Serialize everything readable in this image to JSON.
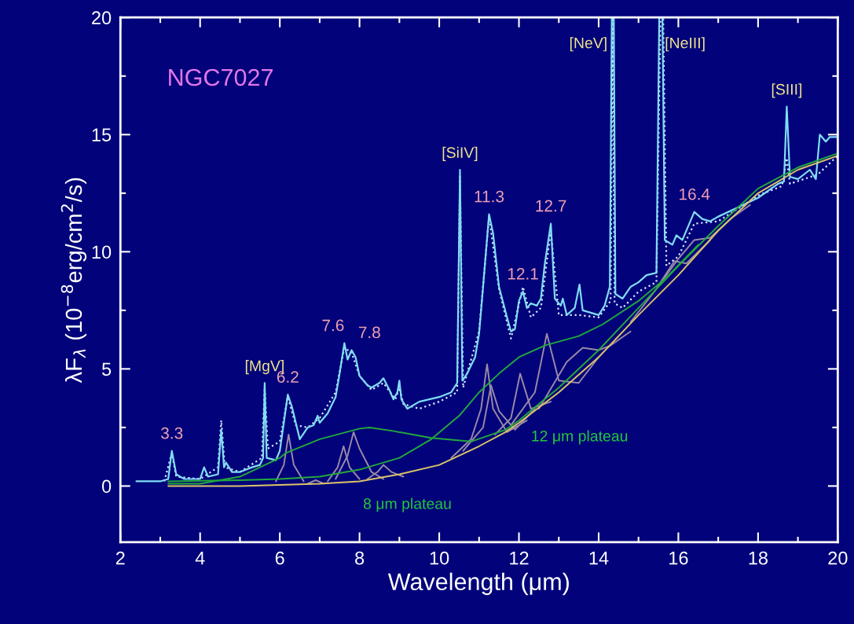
{
  "chart_data": {
    "type": "line",
    "title": "NGC7027",
    "xlabel": "Wavelength (μm)",
    "ylabel": "λF$_{λ}$ (10$^{−8}$erg/cm$^{2}$/s)",
    "xlim": [
      2,
      20
    ],
    "xticks": [
      2,
      4,
      6,
      8,
      10,
      12,
      14,
      16,
      18,
      20
    ],
    "ylim": [
      -2.4,
      20
    ],
    "yticks": [
      0,
      5,
      10,
      15,
      20
    ],
    "grid": false,
    "legend": false,
    "marker": "none",
    "series": [
      {
        "color": "#d8e8ff",
        "line_style": "dotted",
        "x": [
          3.1,
          3.29,
          3.4,
          4.0,
          4.45,
          4.53,
          4.62,
          5.0,
          5.55,
          5.62,
          5.7,
          6.0,
          6.2,
          6.4,
          6.7,
          7.0,
          7.4,
          7.62,
          7.8,
          8.0,
          8.3,
          8.6,
          8.9,
          9.0,
          9.1,
          9.5,
          10.0,
          10.45,
          10.52,
          10.6,
          11.0,
          11.25,
          11.5,
          11.8,
          12.1,
          12.3,
          12.55,
          12.8,
          13.0,
          13.5,
          14.0,
          14.3,
          14.35,
          14.4,
          14.6,
          15.0,
          15.45,
          15.55,
          15.62,
          15.7,
          16.0,
          16.4,
          17.0,
          18.0,
          18.6,
          18.72,
          18.8,
          19.5,
          20.0
        ],
        "values": [
          0.2,
          1.4,
          0.4,
          0.3,
          0.8,
          2.8,
          0.8,
          0.6,
          1.2,
          4.2,
          1.6,
          1.9,
          3.8,
          2.6,
          2.5,
          2.9,
          4.0,
          5.9,
          5.7,
          4.7,
          4.1,
          4.4,
          3.7,
          4.2,
          3.5,
          3.3,
          3.6,
          4.0,
          13.2,
          4.2,
          6.6,
          11.5,
          8.4,
          6.3,
          8.5,
          7.2,
          7.6,
          10.9,
          7.3,
          7.3,
          7.2,
          7.9,
          20,
          7.8,
          7.6,
          8.3,
          8.7,
          20,
          20,
          9.4,
          9.8,
          11.2,
          11.3,
          12.4,
          12.8,
          14.0,
          12.9,
          13.3,
          14.1
        ]
      },
      {
        "color": "#80dcf4",
        "line_style": "solid",
        "x": [
          2.4,
          3.0,
          3.2,
          3.29,
          3.4,
          3.6,
          4.0,
          4.1,
          4.2,
          4.45,
          4.53,
          4.6,
          4.65,
          4.8,
          5.0,
          5.3,
          5.5,
          5.58,
          5.62,
          5.67,
          5.9,
          6.0,
          6.2,
          6.3,
          6.5,
          6.7,
          6.85,
          6.95,
          7.0,
          7.2,
          7.4,
          7.5,
          7.62,
          7.7,
          7.8,
          7.9,
          8.0,
          8.2,
          8.3,
          8.5,
          8.6,
          8.75,
          8.85,
          8.95,
          9.0,
          9.05,
          9.2,
          9.5,
          10.0,
          10.3,
          10.45,
          10.52,
          10.58,
          10.7,
          10.9,
          11.0,
          11.1,
          11.25,
          11.35,
          11.5,
          11.7,
          11.8,
          11.9,
          12.0,
          12.1,
          12.2,
          12.3,
          12.45,
          12.55,
          12.65,
          12.8,
          12.9,
          13.05,
          13.1,
          13.2,
          13.4,
          13.52,
          13.6,
          13.8,
          14.0,
          14.15,
          14.28,
          14.33,
          14.38,
          14.42,
          14.6,
          14.8,
          15.0,
          15.2,
          15.45,
          15.52,
          15.6,
          15.66,
          15.85,
          15.95,
          16.1,
          16.4,
          16.6,
          16.8,
          17.0,
          17.5,
          18.0,
          18.5,
          18.65,
          18.72,
          18.8,
          19.0,
          19.3,
          19.45,
          19.55,
          19.7,
          19.8,
          20.0
        ],
        "values": [
          0.2,
          0.2,
          0.3,
          1.5,
          0.5,
          0.3,
          0.3,
          0.8,
          0.4,
          0.5,
          2.4,
          0.8,
          1.0,
          0.6,
          0.6,
          0.8,
          0.9,
          1.2,
          4.4,
          1.2,
          1.1,
          1.5,
          3.9,
          3.4,
          2.0,
          2.5,
          2.6,
          3.0,
          2.7,
          3.1,
          3.8,
          4.8,
          6.1,
          5.4,
          5.8,
          5.5,
          4.7,
          4.3,
          4.2,
          4.4,
          4.6,
          4.1,
          3.7,
          4.0,
          4.5,
          3.7,
          3.3,
          3.6,
          3.8,
          4.0,
          4.4,
          13.5,
          4.5,
          4.8,
          5.5,
          6.5,
          8.5,
          11.6,
          10.8,
          8.5,
          7.2,
          6.6,
          6.7,
          7.9,
          8.3,
          7.6,
          7.8,
          7.7,
          8.0,
          9.5,
          11.2,
          8.0,
          7.7,
          8.0,
          7.3,
          7.6,
          8.6,
          7.5,
          7.4,
          7.3,
          7.7,
          8.5,
          20,
          20,
          8.2,
          8.0,
          8.5,
          8.7,
          9.0,
          9.1,
          20,
          20,
          10.5,
          10.3,
          10.7,
          10.5,
          11.7,
          11.4,
          11.3,
          11.5,
          11.9,
          12.3,
          12.9,
          13.0,
          16.2,
          13.2,
          13.1,
          13.5,
          13.1,
          15.0,
          14.7,
          14.9,
          14.9
        ]
      },
      {
        "color": "#9a8aa8",
        "x": [
          5.9,
          6.1,
          6.22,
          6.35,
          6.6
        ],
        "values": [
          0.2,
          0.9,
          2.2,
          0.9,
          0.2
        ]
      },
      {
        "color": "#9a8aa8",
        "x": [
          6.7,
          6.9,
          7.1
        ],
        "values": [
          0.1,
          0.25,
          0.1
        ]
      },
      {
        "color": "#9a8aa8",
        "x": [
          7.2,
          7.45,
          7.6,
          7.75,
          8.0
        ],
        "values": [
          0.2,
          0.8,
          1.7,
          0.8,
          0.3
        ]
      },
      {
        "color": "#9a8aa8",
        "x": [
          7.4,
          7.7,
          7.85,
          8.0,
          8.3,
          8.6
        ],
        "values": [
          0.3,
          1.3,
          2.3,
          1.6,
          0.6,
          0.3
        ]
      },
      {
        "color": "#9a8aa8",
        "x": [
          8.2,
          8.45,
          8.6,
          8.8,
          9.1
        ],
        "values": [
          0.3,
          0.6,
          0.9,
          0.6,
          0.4
        ]
      },
      {
        "color": "#9a8aa8",
        "x": [
          10.3,
          10.8,
          11.05,
          11.2,
          11.35,
          11.7,
          12.2
        ],
        "values": [
          1.2,
          2.0,
          3.3,
          5.2,
          3.3,
          2.3,
          2.8
        ]
      },
      {
        "color": "#9a8aa8",
        "x": [
          10.6,
          11.1,
          11.3,
          11.5,
          11.9,
          12.4
        ],
        "values": [
          1.5,
          2.5,
          4.3,
          3.2,
          2.4,
          3.3
        ]
      },
      {
        "color": "#9a8aa8",
        "x": [
          11.4,
          11.8,
          12.03,
          12.3,
          12.8
        ],
        "values": [
          2.2,
          2.9,
          4.8,
          3.3,
          3.6
        ]
      },
      {
        "color": "#9a8aa8",
        "x": [
          11.8,
          12.4,
          12.7,
          13.0,
          13.5,
          14.0
        ],
        "values": [
          2.6,
          4.0,
          6.5,
          4.5,
          4.4,
          5.5
        ]
      },
      {
        "color": "#9a8aa8",
        "x": [
          12.5,
          13.2,
          13.6,
          14.0,
          14.3,
          14.8
        ],
        "values": [
          3.3,
          5.3,
          5.9,
          5.8,
          6.0,
          6.6
        ]
      },
      {
        "color": "#9a8aa8",
        "x": [
          14.8,
          15.4,
          15.9,
          16.2,
          16.8
        ],
        "values": [
          7.0,
          8.3,
          9.6,
          9.5,
          10.5
        ]
      },
      {
        "color": "#9a8aa8",
        "x": [
          15.4,
          16.0,
          16.4,
          16.8,
          17.3,
          17.8
        ],
        "values": [
          8.3,
          9.7,
          10.5,
          10.6,
          11.4,
          12.0
        ]
      },
      {
        "color": "#22a83c",
        "x": [
          3.2,
          4.0,
          5.0,
          6.0,
          6.14,
          7.0,
          8.0,
          8.25,
          8.84,
          9.8,
          10.8,
          11.66,
          12.0,
          13.0,
          14.0,
          15.0,
          16.0,
          17.0,
          18.0,
          19.0,
          20.0
        ],
        "values": [
          0.1,
          0.1,
          0.4,
          1.2,
          1.4,
          2.0,
          2.45,
          2.5,
          2.35,
          2.05,
          1.9,
          2.4,
          2.8,
          4.2,
          5.8,
          7.6,
          9.4,
          11.1,
          12.7,
          13.6,
          14.2
        ]
      },
      {
        "color": "#22a83c",
        "x": [
          3.2,
          5.0,
          6.0,
          7.0,
          8.0,
          9.0,
          9.8,
          10.5,
          11.0,
          11.5,
          12.0,
          12.65,
          13.5,
          14.1,
          15.0,
          15.7,
          16.5
        ],
        "values": [
          0.2,
          0.25,
          0.3,
          0.4,
          0.7,
          1.2,
          2.0,
          3.0,
          4.0,
          4.8,
          5.5,
          6.0,
          6.4,
          6.9,
          7.9,
          8.9,
          10.3
        ]
      },
      {
        "color": "#dcc468",
        "x": [
          3.2,
          5.0,
          6.0,
          7.0,
          8.0,
          9.0,
          10.0,
          11.0,
          11.66,
          12.0,
          13.0,
          14.0,
          15.0,
          16.0,
          17.0,
          18.0,
          19.0,
          20.0
        ],
        "values": [
          0.0,
          0.0,
          0.05,
          0.1,
          0.2,
          0.5,
          0.9,
          1.7,
          2.3,
          2.7,
          4.0,
          5.5,
          7.3,
          9.0,
          10.9,
          12.5,
          13.5,
          14.1
        ]
      }
    ],
    "annotations": [
      {
        "text": "[MgV]",
        "x": 5.62,
        "y": 4.4
      },
      {
        "text": "[SiIV]",
        "x": 10.52,
        "y": 13.5
      },
      {
        "text": "[NeV]",
        "x": 14.33,
        "y": 20
      },
      {
        "text": "[NeIII]",
        "x": 15.55,
        "y": 20
      },
      {
        "text": "[SIII]",
        "x": 18.72,
        "y": 16.2
      },
      {
        "text": "3.3",
        "x": 3.29,
        "y": 1.5
      },
      {
        "text": "6.2",
        "x": 6.2,
        "y": 3.9
      },
      {
        "text": "7.6",
        "x": 7.62,
        "y": 6.1
      },
      {
        "text": "7.8",
        "x": 7.8,
        "y": 5.8
      },
      {
        "text": "11.3",
        "x": 11.25,
        "y": 11.6
      },
      {
        "text": "12.1",
        "x": 12.1,
        "y": 8.3
      },
      {
        "text": "12.7",
        "x": 12.8,
        "y": 11.2
      },
      {
        "text": "16.4",
        "x": 16.4,
        "y": 11.7
      },
      "8 μm plateau",
      "12 μm plateau"
    ]
  }
}
